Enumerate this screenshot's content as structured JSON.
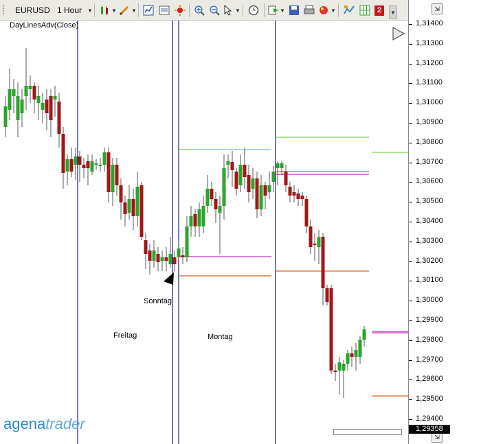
{
  "toolbar": {
    "symbol": "EURUSD",
    "timeframe": "1 Hour",
    "icons": [
      "candles-icon",
      "pencil-icon",
      "chart-window-icon",
      "template-icon",
      "sun-icon",
      "zoom-in-icon",
      "zoom-out-icon",
      "cursor-icon",
      "clock-icon",
      "export-icon",
      "save-icon",
      "print-icon",
      "color-icon",
      "indicator-icon",
      "grid-icon",
      "badge-icon",
      "scroll-down-icon"
    ],
    "badge_number": "2"
  },
  "chart": {
    "indicator_label": "DayLinesAdv(Close)",
    "annotations": {
      "sonntag": "Sonntag",
      "freitag": "Freitag",
      "montag": "Montag"
    },
    "price_labels": [
      "1,31400",
      "1,31300",
      "1,31200",
      "1,31100",
      "1,31000",
      "1,30900",
      "1,30800",
      "1,30700",
      "1,30600",
      "1,30500",
      "1,30400",
      "1,30300",
      "1,30200",
      "1,30100",
      "1,30000",
      "1,29900",
      "1,29800",
      "1,29700",
      "1,29600",
      "1,29500",
      "1,29400"
    ],
    "current_price": "1,29358",
    "colors": {
      "bull": "#2aa52a",
      "bear": "#a01818",
      "session_line": "#1c1ca8",
      "high_line": "#7cd840",
      "mid_line": "#c030c0",
      "low_line": "#e06020"
    }
  },
  "logo": {
    "part1": "agena",
    "part2": "trader"
  }
}
